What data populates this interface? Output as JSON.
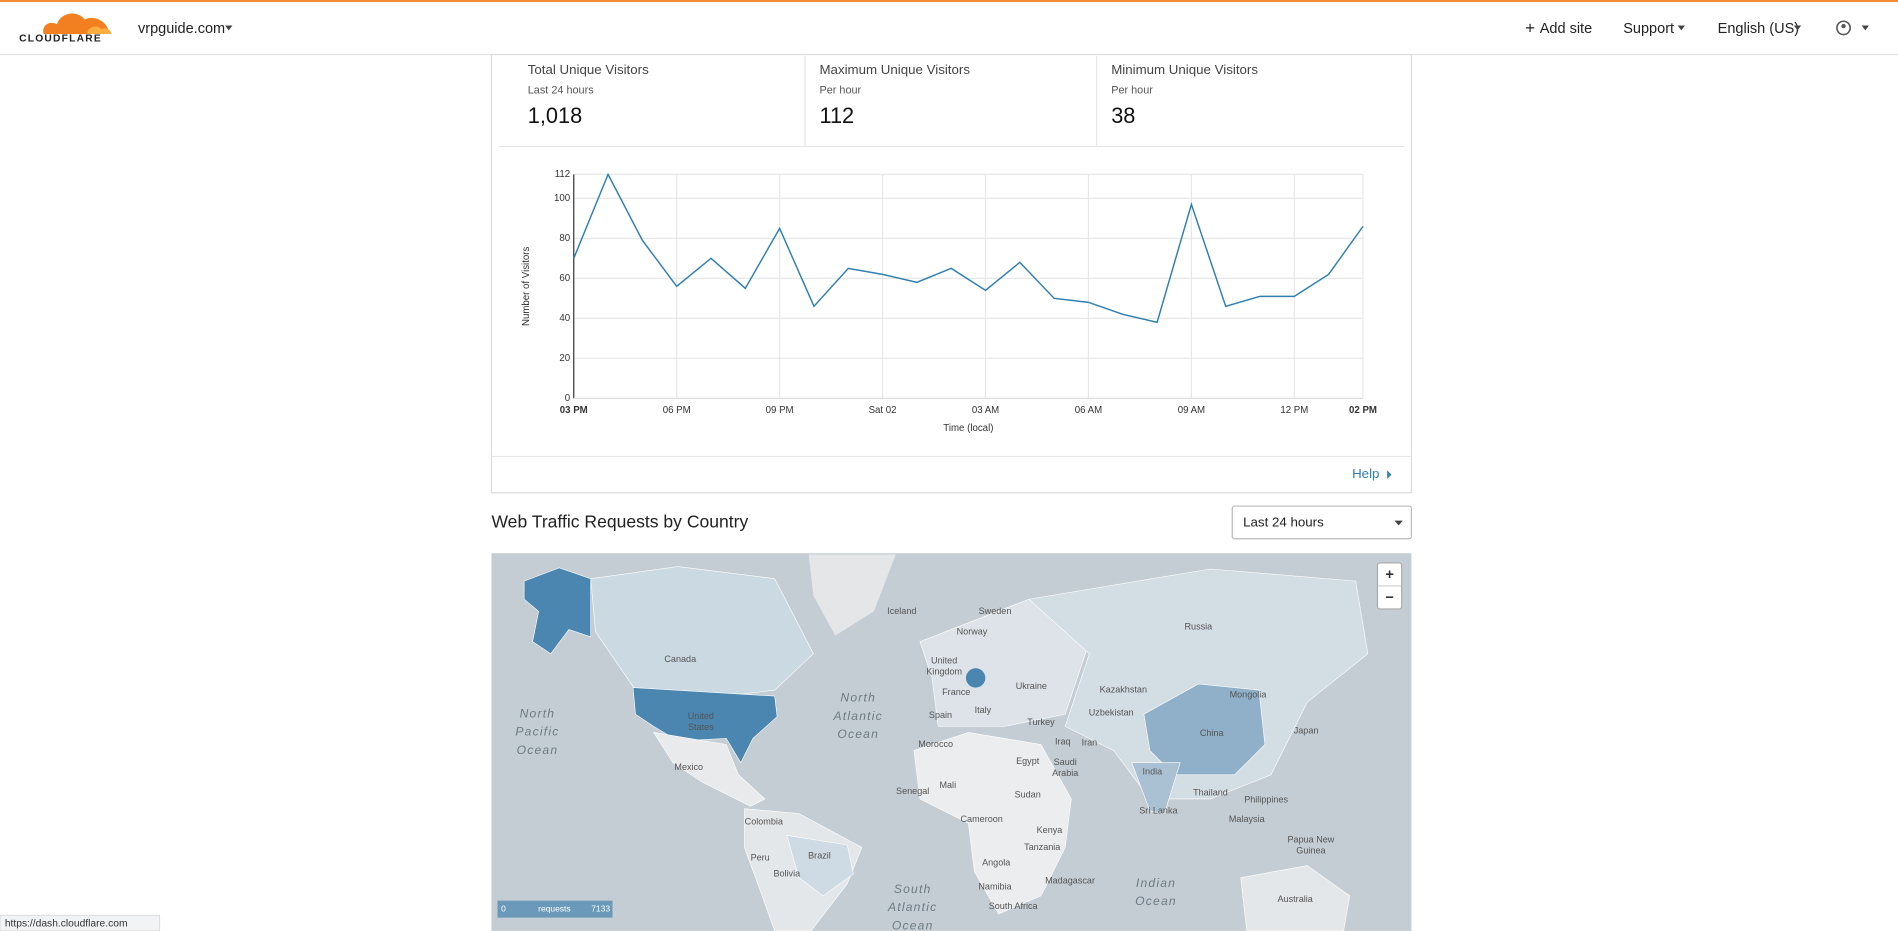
{
  "header": {
    "logo": "CLOUDFLARE",
    "domain": "vrpguide.com",
    "nav": [
      "Add site",
      "Support",
      "English (US)"
    ]
  },
  "stats": [
    {
      "title": "Total Unique Visitors",
      "subtitle": "Last 24 hours",
      "value": {
        "value": 1018,
        "label": "1,018"
      }
    },
    {
      "title": "Maximum Unique Visitors",
      "subtitle": "Per hour",
      "value": 112
    },
    {
      "title": "Minimum Unique Visitors",
      "subtitle": "Per hour",
      "value": 38
    }
  ],
  "chart_data": {
    "type": "line",
    "y_label": "Number of Visitors",
    "x_label": "Time (local)",
    "categories": [
      "03 PM",
      null,
      null,
      "06 PM",
      null,
      null,
      "09 PM",
      null,
      null,
      "Sat 02",
      null,
      null,
      "03 AM",
      null,
      null,
      "06 AM",
      null,
      null,
      "09 AM",
      null,
      null,
      "12 PM",
      null,
      "02 PM"
    ],
    "values": [
      70,
      112,
      79,
      56,
      70,
      55,
      85,
      46,
      65,
      62,
      58,
      65,
      54,
      68,
      50,
      48,
      42,
      38,
      97,
      46,
      51,
      51,
      62,
      86
    ],
    "color": "#2f7fb0",
    "ylim": [
      0,
      112
    ],
    "yticks": [
      0,
      20,
      40,
      60,
      80,
      100,
      112
    ],
    "grid": true
  },
  "help": "Help",
  "map_section": {
    "title": "Web Traffic Requests by Country",
    "range": "Last 24 hours",
    "zoom": [
      "+",
      "−"
    ],
    "legend": {
      "min": 0,
      "label": "requests",
      "max": 7133
    },
    "labels": [
      {
        "lines": [
          "Canada"
        ]
      },
      {
        "lines": [
          "United",
          "States"
        ]
      },
      {
        "lines": [
          "Mexico"
        ]
      },
      {
        "lines": [
          "North",
          "Pacific",
          "Ocean"
        ]
      },
      {
        "lines": [
          "North",
          "Atlantic",
          "Ocean"
        ]
      },
      {
        "lines": [
          "Iceland"
        ]
      },
      {
        "lines": [
          "Sweden"
        ]
      },
      {
        "lines": [
          "Norway"
        ]
      },
      {
        "lines": [
          "United",
          "Kingdom"
        ]
      },
      {
        "lines": [
          "France"
        ]
      },
      {
        "lines": [
          "Spain"
        ]
      },
      {
        "lines": [
          "Italy"
        ]
      },
      {
        "lines": [
          "Ukraine"
        ]
      },
      {
        "lines": [
          "Turkey"
        ]
      },
      {
        "lines": [
          "Morocco"
        ]
      },
      {
        "lines": [
          "Egypt"
        ]
      },
      {
        "lines": [
          "Iraq"
        ]
      },
      {
        "lines": [
          "Iran"
        ]
      },
      {
        "lines": [
          "Saudi",
          "Arabia"
        ]
      },
      {
        "lines": [
          "Kazakhstan"
        ]
      },
      {
        "lines": [
          "Uzbekistan"
        ]
      },
      {
        "lines": [
          "Mongolia"
        ]
      },
      {
        "lines": [
          "China"
        ]
      },
      {
        "lines": [
          "Japan"
        ]
      },
      {
        "lines": [
          "Russia"
        ]
      },
      {
        "lines": [
          "India"
        ]
      },
      {
        "lines": [
          "Mali"
        ]
      },
      {
        "lines": [
          "Senegal"
        ]
      },
      {
        "lines": [
          "Sudan"
        ]
      },
      {
        "lines": [
          "Thailand"
        ]
      },
      {
        "lines": [
          "Philippines"
        ]
      },
      {
        "lines": [
          "Sri Lanka"
        ]
      },
      {
        "lines": [
          "Malaysia"
        ]
      },
      {
        "lines": [
          "Colombia"
        ]
      },
      {
        "lines": [
          "Cameroon"
        ]
      },
      {
        "lines": [
          "Kenya"
        ]
      },
      {
        "lines": [
          "Tanzania"
        ]
      },
      {
        "lines": [
          "Brazil"
        ]
      },
      {
        "lines": [
          "Peru"
        ]
      },
      {
        "lines": [
          "Bolivia"
        ]
      },
      {
        "lines": [
          "Angola"
        ]
      },
      {
        "lines": [
          "Madagascar"
        ]
      },
      {
        "lines": [
          "Namibia"
        ]
      },
      {
        "lines": [
          "South Africa"
        ]
      },
      {
        "lines": [
          "Papua New",
          "Guinea"
        ]
      },
      {
        "lines": [
          "Indian",
          "Ocean"
        ]
      },
      {
        "lines": [
          "South",
          "Atlantic",
          "Ocean"
        ]
      },
      {
        "lines": [
          "Australia"
        ]
      }
    ]
  },
  "status_url": "https://dash.cloudflare.com"
}
